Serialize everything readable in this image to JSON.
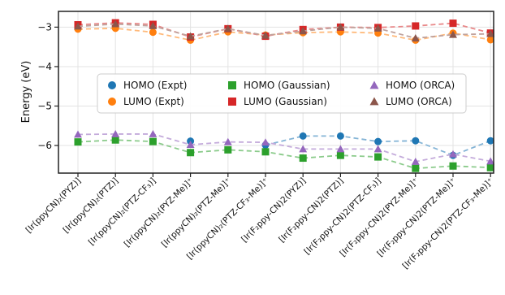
{
  "chart_data": {
    "type": "line",
    "title": "",
    "xlabel": "",
    "ylabel": "Energy (eV)",
    "ylim": [
      -6.7,
      -2.6
    ],
    "yticks": [
      -6,
      -5,
      -4,
      -3
    ],
    "ytick_labels": [
      "−6",
      "−5",
      "−4",
      "−3"
    ],
    "grid": true,
    "legend_position": "center",
    "categories": [
      "[Ir(ppyCN)₂(PYZ)]",
      "[Ir(ppyCN)₂(PTZ)]",
      "[Ir(ppyCN)₂(PTZ-CF₃)]",
      "[Ir(ppyCN)₂(PYZ-Me)]⁺",
      "[Ir(ppyCN)₂(PTZ-Me)]⁺",
      "[Ir(ppyCN)₂(PTZ-CF₃-Me)]⁺",
      "[Ir(F₂ppy-CN)2(PYZ)]",
      "[Ir(F₂ppy-CN)2(PTZ)]",
      "[Ir(F₂ppy-CN)2(PTZ-CF₃)]",
      "[Ir(F₂ppy-CN)2(PYZ-Me)]⁺",
      "[Ir(F₂ppy-CN)2(PTZ-Me)]⁺",
      "[Ir(F₂ppy-CN)2(PTZ-CF₃-Me)]⁺"
    ],
    "series": [
      {
        "name": "HOMO (Expt)",
        "color": "#1f77b4",
        "marker": "circle",
        "values": [
          null,
          null,
          null,
          -5.89,
          null,
          -5.99,
          -5.76,
          -5.76,
          -5.9,
          -5.88,
          -6.25,
          -5.88
        ]
      },
      {
        "name": "LUMO (Expt)",
        "color": "#ff7f0e",
        "marker": "circle",
        "values": [
          -3.05,
          -3.03,
          -3.13,
          -3.33,
          -3.12,
          -3.2,
          -3.14,
          -3.12,
          -3.15,
          -3.33,
          -3.15,
          -3.32
        ]
      },
      {
        "name": "HOMO (Gaussian)",
        "color": "#2ca02c",
        "marker": "square",
        "values": [
          -5.91,
          -5.86,
          -5.9,
          -6.18,
          -6.11,
          -6.16,
          -6.32,
          -6.25,
          -6.29,
          -6.58,
          -6.52,
          -6.56
        ]
      },
      {
        "name": "LUMO (Gaussian)",
        "color": "#d62728",
        "marker": "square",
        "values": [
          -2.94,
          -2.89,
          -2.93,
          -3.25,
          -3.04,
          -3.23,
          -3.06,
          -3.0,
          -3.01,
          -2.97,
          -2.9,
          -3.15
        ]
      },
      {
        "name": "HOMO (ORCA)",
        "color": "#9467bd",
        "marker": "triangle",
        "values": [
          -5.72,
          -5.71,
          -5.71,
          -5.98,
          -5.91,
          -5.92,
          -6.09,
          -6.09,
          -6.09,
          -6.41,
          -6.22,
          -6.4
        ]
      },
      {
        "name": "LUMO (ORCA)",
        "color": "#8c564b",
        "marker": "triangle",
        "values": [
          -2.98,
          -2.92,
          -2.97,
          -3.23,
          -3.04,
          -3.21,
          -3.1,
          -3.0,
          -3.03,
          -3.28,
          -3.19,
          -3.17
        ]
      }
    ]
  }
}
